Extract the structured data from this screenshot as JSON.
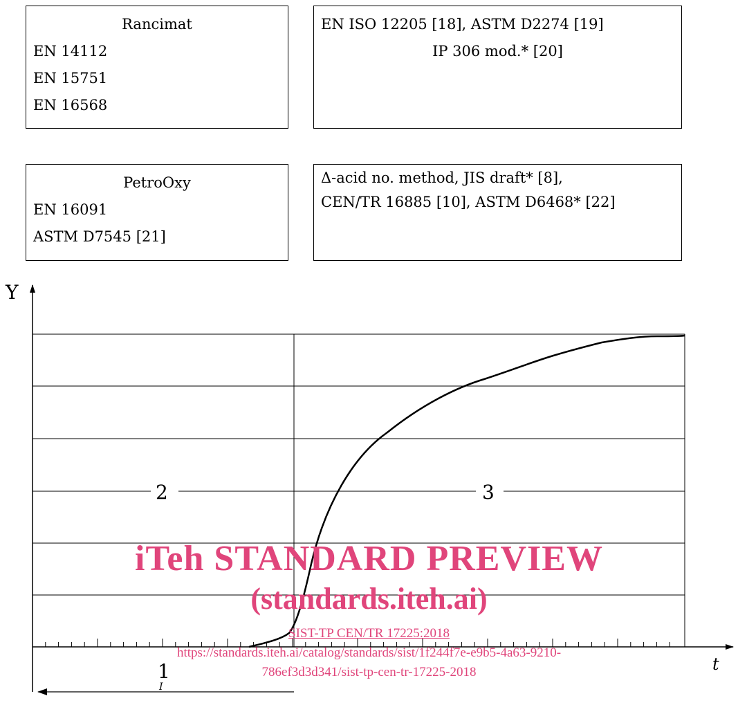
{
  "boxes": {
    "rancimat": {
      "title": "Rancimat",
      "lines": [
        "EN 14112",
        "EN 15751",
        "EN 16568"
      ]
    },
    "iso": {
      "line1": "EN ISO 12205 [18], ASTM D2274 [19]",
      "line2": "IP 306 mod.* [20]"
    },
    "petrooxy": {
      "title": "PetroOxy",
      "lines": [
        "EN 16091",
        "ASTM D7545 [21]"
      ]
    },
    "acid": {
      "line1": "Δ-acid no. method, JIS draft* [8],",
      "line2": "CEN/TR 16885 [10], ASTM D6468* [22]"
    }
  },
  "diagram": {
    "y_axis_label": "Y",
    "x_axis_label": "t",
    "region_labels": {
      "induction": "2",
      "oxidation": "3",
      "period": "1"
    },
    "period_marker": "I"
  },
  "watermark": {
    "title": "iTeh STANDARD PREVIEW",
    "subtitle": "(standards.iteh.ai)",
    "link_text": "SIST-TP CEN/TR 17225:2018",
    "url_line1": "https://standards.iteh.ai/catalog/standards/sist/1f244f7e-e9b5-4a63-9210-",
    "url_line2": "786ef3d3d341/sist-tp-cen-tr-17225-2018",
    "color": "#e0457b"
  }
}
